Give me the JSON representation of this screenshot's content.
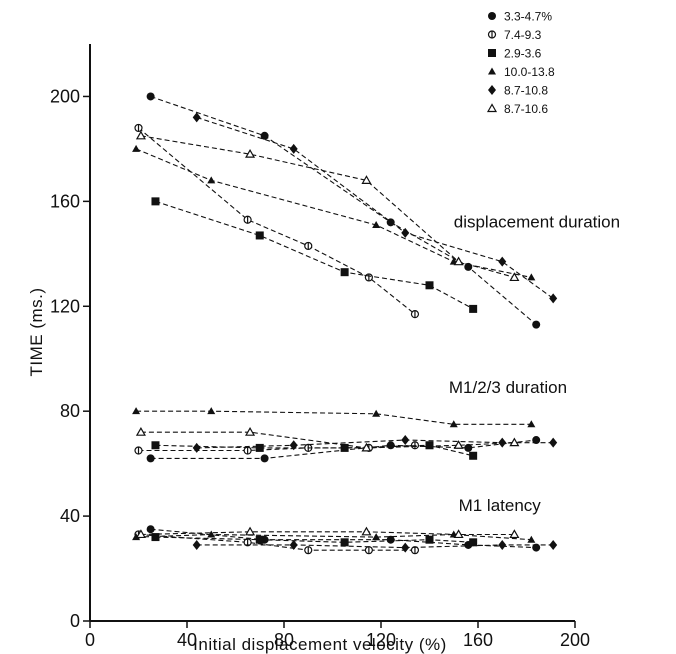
{
  "chart_data": {
    "type": "line",
    "xlabel": "Initial displacement velocity  (%)",
    "ylabel": "TIME (ms.)",
    "xlim": [
      0,
      200
    ],
    "ylim": [
      0,
      220
    ],
    "xticks": [
      "0",
      "40",
      "80",
      "120",
      "160",
      "200"
    ],
    "xtick_values": [
      0,
      40,
      80,
      120,
      160,
      200
    ],
    "yticks": [
      "0",
      "40",
      "80",
      "120",
      "160",
      "200"
    ],
    "ytick_values": [
      0,
      40,
      80,
      120,
      160,
      200
    ],
    "grid": false,
    "legend_position": "top-right",
    "group_labels": [
      {
        "text": "displacement duration",
        "x": 150,
        "y": 150
      },
      {
        "text": "M1/2/3 duration",
        "x": 148,
        "y": 87
      },
      {
        "text": "M1 latency",
        "x": 152,
        "y": 42
      }
    ],
    "series": [
      {
        "name": "3.3-4.7%",
        "marker": "filled-circle",
        "groups": [
          {
            "label": "displacement duration",
            "x": [
              25,
              72,
              124,
              156,
              184
            ],
            "y": [
              200,
              185,
              152,
              135,
              113
            ]
          },
          {
            "label": "M1/2/3 duration",
            "x": [
              25,
              72,
              124,
              156,
              184
            ],
            "y": [
              62,
              62,
              67,
              66,
              69
            ]
          },
          {
            "label": "M1 latency",
            "x": [
              25,
              72,
              124,
              156,
              184
            ],
            "y": [
              35,
              31,
              31,
              29,
              28
            ]
          }
        ]
      },
      {
        "name": "7.4-9.3",
        "marker": "open-circle-bar",
        "groups": [
          {
            "label": "displacement duration",
            "x": [
              20,
              65,
              90,
              115,
              134
            ],
            "y": [
              188,
              153,
              143,
              131,
              117
            ]
          },
          {
            "label": "M1/2/3 duration",
            "x": [
              20,
              65,
              90,
              115,
              134
            ],
            "y": [
              65,
              65,
              66,
              66,
              67
            ]
          },
          {
            "label": "M1 latency",
            "x": [
              20,
              65,
              90,
              115,
              134
            ],
            "y": [
              33,
              30,
              27,
              27,
              27
            ]
          }
        ]
      },
      {
        "name": "2.9-3.6",
        "marker": "filled-square",
        "groups": [
          {
            "label": "displacement duration",
            "x": [
              27,
              70,
              105,
              140,
              158
            ],
            "y": [
              160,
              147,
              133,
              128,
              119
            ]
          },
          {
            "label": "M1/2/3 duration",
            "x": [
              27,
              70,
              105,
              140,
              158
            ],
            "y": [
              67,
              66,
              66,
              67,
              63
            ]
          },
          {
            "label": "M1 latency",
            "x": [
              27,
              70,
              105,
              140,
              158
            ],
            "y": [
              32,
              31,
              30,
              31,
              30
            ]
          }
        ]
      },
      {
        "name": "10.0-13.8",
        "marker": "filled-triangle",
        "groups": [
          {
            "label": "displacement duration",
            "x": [
              19,
              50,
              118,
              150,
              182
            ],
            "y": [
              180,
              168,
              151,
              137,
              131
            ]
          },
          {
            "label": "M1/2/3 duration",
            "x": [
              19,
              50,
              118,
              150,
              182
            ],
            "y": [
              80,
              80,
              79,
              75,
              75
            ]
          },
          {
            "label": "M1 latency",
            "x": [
              19,
              50,
              118,
              150,
              182
            ],
            "y": [
              32,
              33,
              32,
              33,
              31
            ]
          }
        ]
      },
      {
        "name": "8.7-10.8",
        "marker": "filled-diamond",
        "groups": [
          {
            "label": "displacement duration",
            "x": [
              44,
              84,
              130,
              170,
              191
            ],
            "y": [
              192,
              180,
              148,
              137,
              123
            ]
          },
          {
            "label": "M1/2/3 duration",
            "x": [
              44,
              84,
              130,
              170,
              191
            ],
            "y": [
              66,
              67,
              69,
              68,
              68
            ]
          },
          {
            "label": "M1 latency",
            "x": [
              44,
              84,
              130,
              170,
              191
            ],
            "y": [
              29,
              29,
              28,
              29,
              29
            ]
          }
        ]
      },
      {
        "name": "8.7-10.6",
        "marker": "open-triangle",
        "groups": [
          {
            "label": "displacement duration",
            "x": [
              21,
              66,
              114,
              152,
              175
            ],
            "y": [
              185,
              178,
              168,
              137,
              131
            ]
          },
          {
            "label": "M1/2/3 duration",
            "x": [
              21,
              66,
              114,
              152,
              175
            ],
            "y": [
              72,
              72,
              66,
              67,
              68
            ]
          },
          {
            "label": "M1 latency",
            "x": [
              21,
              66,
              114,
              152,
              175
            ],
            "y": [
              33,
              34,
              34,
              33,
              33
            ]
          }
        ]
      }
    ]
  }
}
